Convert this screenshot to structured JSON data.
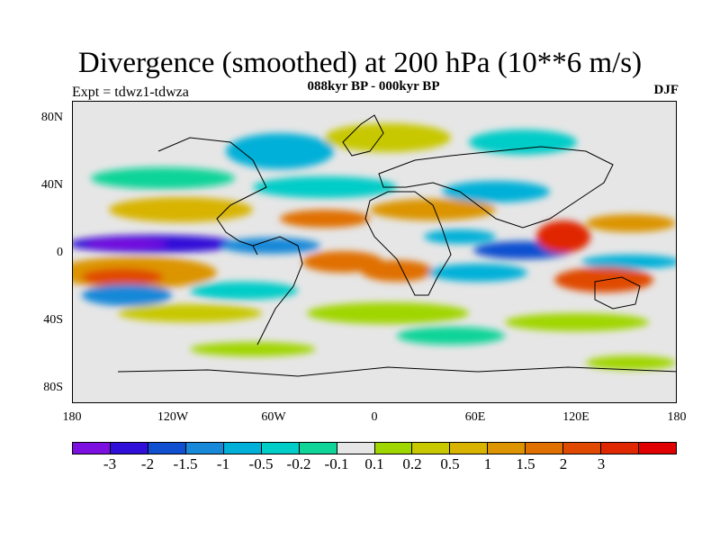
{
  "title": "Divergence (smoothed) at 200 hPa (10**6 m/s)",
  "subtitle": "088kyr BP - 000kyr BP",
  "experiment": "Expt = tdwz1-tdwza",
  "season": "DJF",
  "lat_labels": [
    "80N",
    "40N",
    "0",
    "40S",
    "80S"
  ],
  "lon_labels": [
    "180",
    "120W",
    "60W",
    "0",
    "60E",
    "120E",
    "180"
  ],
  "colorbar": {
    "colors": [
      "#7b10e0",
      "#3010d8",
      "#1050d0",
      "#1888d8",
      "#00b0d8",
      "#00ccc8",
      "#10d498",
      "#e6e6e6",
      "#a0d600",
      "#c8c800",
      "#d8b400",
      "#dc9400",
      "#e07000",
      "#e04a00",
      "#e02800",
      "#e00000"
    ],
    "labels": [
      "-3",
      "-2",
      "-1.5",
      "-1",
      "-0.5",
      "-0.2",
      "-0.1",
      "0.1",
      "0.2",
      "0.5",
      "1",
      "1.5",
      "2",
      "3"
    ]
  }
}
